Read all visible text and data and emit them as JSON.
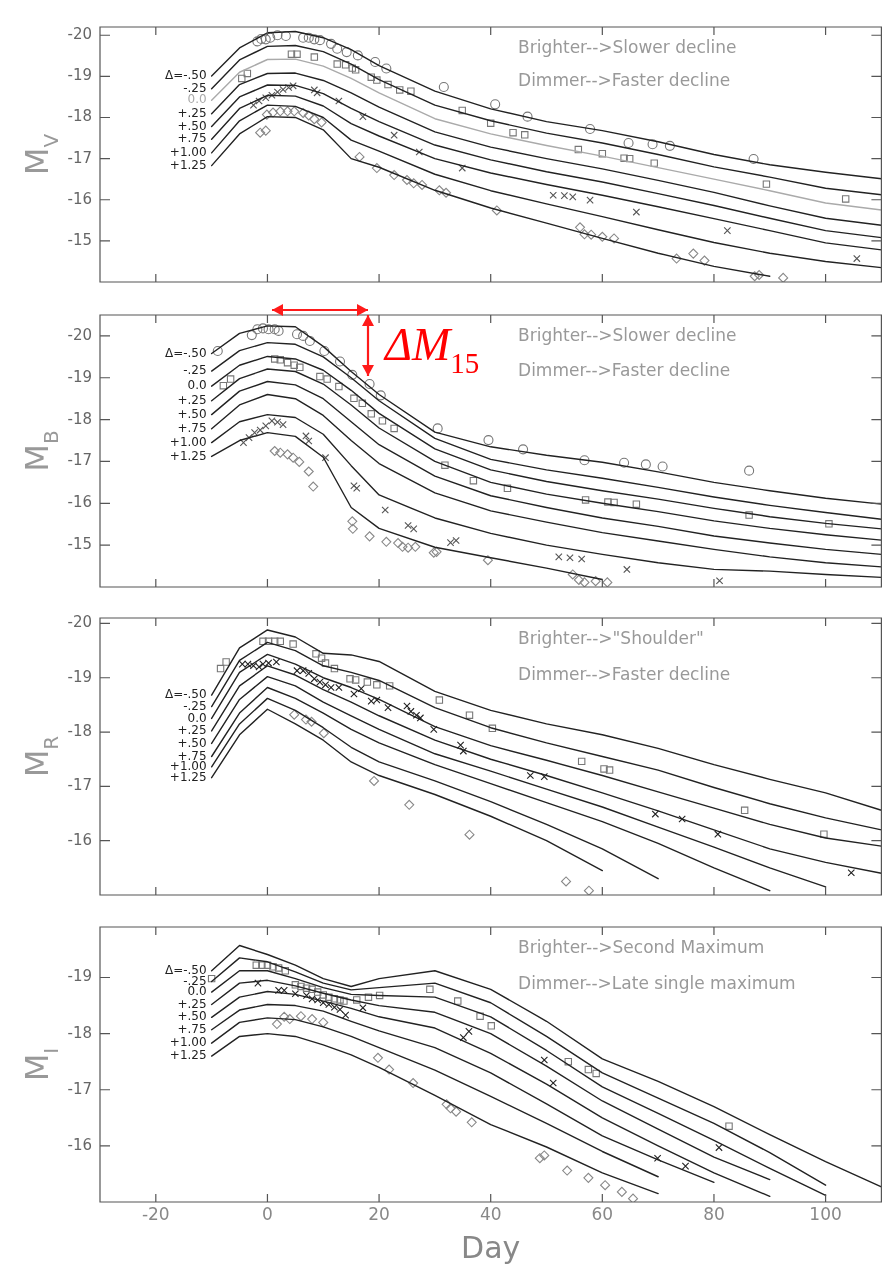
{
  "chart_data": [
    {
      "type": "line",
      "ylabel": "M$_{V}$",
      "xlim": [
        -30,
        110
      ],
      "xticks": [
        -20,
        0,
        20,
        40,
        60,
        80,
        100
      ],
      "ylim": [
        -14,
        -20.2
      ],
      "yticks": [
        -20,
        -19,
        -18,
        -17,
        -16,
        -15
      ],
      "tick_labels": "y",
      "grid": false,
      "legend": false,
      "marker": "none",
      "annotations": [
        "Brighter-->Slower decline",
        "Dimmer-->Faster decline"
      ],
      "x": [
        -10,
        -5,
        0,
        5,
        10,
        15,
        20,
        30,
        40,
        50,
        60,
        70,
        80,
        90,
        100,
        110
      ],
      "series": [
        {
          "name": "Δ=-.50",
          "color": "#222222",
          "values": [
            -19.01,
            -19.69,
            -20.06,
            -20.09,
            -19.94,
            -19.65,
            -19.26,
            -18.64,
            -18.21,
            -17.9,
            -17.68,
            -17.41,
            -17.1,
            -16.85,
            -16.67,
            -16.51
          ]
        },
        {
          "name": "-.25",
          "color": "#222222",
          "values": [
            -18.7,
            -19.4,
            -19.73,
            -19.75,
            -19.6,
            -19.3,
            -18.92,
            -18.3,
            -17.92,
            -17.62,
            -17.38,
            -17.1,
            -16.8,
            -16.55,
            -16.28,
            -16.12
          ]
        },
        {
          "name": "0.0",
          "color": "#aaaaaa",
          "values": [
            -18.42,
            -19.1,
            -19.41,
            -19.42,
            -19.25,
            -18.95,
            -18.6,
            -17.97,
            -17.6,
            -17.32,
            -17.06,
            -16.78,
            -16.5,
            -16.22,
            -15.92,
            -15.75
          ]
        },
        {
          "name": "+.25",
          "color": "#222222",
          "values": [
            -18.09,
            -18.8,
            -19.07,
            -19.08,
            -18.9,
            -18.6,
            -18.25,
            -17.65,
            -17.28,
            -17.0,
            -16.75,
            -16.47,
            -16.18,
            -15.85,
            -15.55,
            -15.38
          ]
        },
        {
          "name": "+.50",
          "color": "#222222",
          "values": [
            -17.78,
            -18.5,
            -18.79,
            -18.78,
            -18.58,
            -18.22,
            -17.9,
            -17.33,
            -16.97,
            -16.68,
            -16.43,
            -16.15,
            -15.86,
            -15.55,
            -15.25,
            -15.08
          ]
        },
        {
          "name": "+.75",
          "color": "#222222",
          "values": [
            -17.47,
            -18.22,
            -18.54,
            -18.52,
            -18.28,
            -17.85,
            -17.55,
            -17.0,
            -16.65,
            -16.37,
            -16.11,
            -15.83,
            -15.54,
            -15.25,
            -14.95,
            -14.78
          ]
        },
        {
          "name": "+1.00",
          "color": "#222222",
          "values": [
            -17.14,
            -17.92,
            -18.3,
            -18.27,
            -18.0,
            -17.45,
            -17.18,
            -16.62,
            -16.22,
            -15.9,
            -15.59,
            -15.27,
            -14.96,
            -14.7,
            -14.5,
            -14.35
          ]
        },
        {
          "name": "+1.25",
          "color": "#222222",
          "values": [
            -16.83,
            -17.6,
            -18.02,
            -18.0,
            -17.7,
            -17.0,
            -16.79,
            -16.23,
            -15.8,
            -15.43,
            -15.06,
            -14.7,
            -14.38,
            -14.14,
            null,
            null
          ]
        },
        {
          "type": "scatter",
          "marker": "circle",
          "color": "#777777",
          "x": [
            -1.8,
            -1.1,
            -0.3,
            0.5,
            1.8,
            3.3,
            6.4,
            7.4,
            8.4,
            9.4,
            11.4,
            12.5,
            14.2,
            16.2,
            19.3,
            21.3,
            31.6,
            40.8,
            46.6,
            57.8,
            64.7,
            69.0,
            72.1,
            87.1
          ],
          "values": [
            -19.85,
            -19.91,
            -19.9,
            -19.94,
            -20.0,
            -19.98,
            -19.94,
            -19.94,
            -19.9,
            -19.88,
            -19.79,
            -19.67,
            -19.59,
            -19.51,
            -19.35,
            -19.19,
            -18.74,
            -18.32,
            -18.02,
            -17.72,
            -17.38,
            -17.35,
            -17.31,
            -16.99
          ]
        },
        {
          "type": "scatter",
          "marker": "square",
          "color": "#777777",
          "x": [
            -4.6,
            -3.6,
            4.3,
            5.3,
            8.4,
            12.5,
            14.0,
            15.2,
            15.8,
            18.6,
            19.6,
            21.6,
            23.7,
            25.7,
            34.9,
            40.0,
            44.0,
            46.1,
            55.7,
            60.0,
            63.9,
            64.9,
            69.3,
            89.4,
            103.6
          ],
          "values": [
            -18.95,
            -19.07,
            -19.54,
            -19.54,
            -19.47,
            -19.3,
            -19.28,
            -19.2,
            -19.16,
            -18.98,
            -18.91,
            -18.8,
            -18.67,
            -18.64,
            -18.17,
            -17.86,
            -17.63,
            -17.58,
            -17.22,
            -17.12,
            -17.01,
            -17.0,
            -16.89,
            -16.38,
            -16.02
          ]
        },
        {
          "type": "scatter",
          "marker": "cross",
          "color": "#555555",
          "x": [
            -2.5,
            -1.5,
            -0.3,
            0.8,
            1.8,
            2.8,
            3.8,
            4.6,
            8.4,
            8.9,
            12.8,
            17.1,
            22.7,
            27.2,
            34.9,
            51.2,
            53.2,
            54.7,
            57.8,
            66.1,
            82.4,
            105.6
          ],
          "values": [
            -18.3,
            -18.4,
            -18.48,
            -18.54,
            -18.62,
            -18.68,
            -18.73,
            -18.77,
            -18.67,
            -18.6,
            -18.4,
            -18.02,
            -17.57,
            -17.16,
            -16.77,
            -16.11,
            -16.1,
            -16.07,
            -15.99,
            -15.7,
            -15.25,
            -14.57
          ]
        },
        {
          "type": "scatter",
          "marker": "diamond",
          "color": "#888888",
          "x": [
            -1.3,
            -0.3,
            -0.1,
            1.0,
            2.3,
            3.6,
            4.8,
            6.4,
            7.4,
            8.4,
            9.7,
            16.5,
            19.6,
            22.7,
            25.0,
            26.2,
            27.7,
            30.8,
            32.0,
            41.1,
            56.0,
            56.8,
            58.0,
            60.0,
            62.1,
            73.3,
            76.3,
            78.3,
            87.3,
            88.1,
            92.4
          ],
          "values": [
            -17.63,
            -17.68,
            -18.07,
            -18.12,
            -18.15,
            -18.15,
            -18.15,
            -18.11,
            -18.05,
            -17.96,
            -17.88,
            -17.04,
            -16.77,
            -16.6,
            -16.48,
            -16.4,
            -16.36,
            -16.23,
            -16.17,
            -15.74,
            -15.33,
            -15.16,
            -15.15,
            -15.1,
            -15.06,
            -14.57,
            -14.69,
            -14.52,
            -14.14,
            -14.17,
            -14.1
          ]
        }
      ]
    },
    {
      "type": "line",
      "ylabel": "M$_{B}$",
      "xlim": [
        -30,
        110
      ],
      "xticks": [
        -20,
        0,
        20,
        40,
        60,
        80,
        100
      ],
      "ylim": [
        -14,
        -20.5
      ],
      "yticks": [
        -20,
        -19,
        -18,
        -17,
        -16,
        -15
      ],
      "tick_labels": "y",
      "grid": false,
      "legend": false,
      "marker": "none",
      "annotations": [
        "Brighter-->Slower decline",
        "Dimmer-->Faster decline",
        {
          "text": "ΔM$_{15}$",
          "x": 18,
          "y": -19.05
        }
      ],
      "x": [
        -10,
        -5,
        0,
        5,
        10,
        15,
        20,
        30,
        40,
        50,
        60,
        70,
        80,
        90,
        100,
        110
      ],
      "series": [
        {
          "name": "Δ=-.50",
          "color": "#222222",
          "values": [
            -19.58,
            -20.06,
            -20.24,
            -20.22,
            -19.75,
            -19.15,
            -18.6,
            -17.7,
            -17.35,
            -17.15,
            -16.98,
            -16.75,
            -16.5,
            -16.3,
            -16.12,
            -15.98
          ]
        },
        {
          "name": "-.25",
          "color": "#222222",
          "values": [
            -19.16,
            -19.65,
            -19.84,
            -19.8,
            -19.5,
            -19.0,
            -18.45,
            -17.55,
            -17.05,
            -16.8,
            -16.6,
            -16.38,
            -16.15,
            -15.95,
            -15.78,
            -15.62
          ]
        },
        {
          "name": "0.0",
          "color": "#222222",
          "values": [
            -18.8,
            -19.3,
            -19.51,
            -19.45,
            -19.18,
            -18.7,
            -18.15,
            -17.3,
            -16.8,
            -16.52,
            -16.3,
            -16.1,
            -15.88,
            -15.68,
            -15.52,
            -15.39
          ]
        },
        {
          "name": "+.25",
          "color": "#222222",
          "values": [
            -18.45,
            -18.98,
            -19.21,
            -19.15,
            -18.85,
            -18.35,
            -17.8,
            -17.0,
            -16.5,
            -16.22,
            -16.0,
            -15.8,
            -15.58,
            -15.4,
            -15.25,
            -15.12
          ]
        },
        {
          "name": "+.50",
          "color": "#222222",
          "values": [
            -18.12,
            -18.68,
            -18.91,
            -18.83,
            -18.5,
            -17.95,
            -17.4,
            -16.65,
            -16.18,
            -15.9,
            -15.65,
            -15.45,
            -15.22,
            -15.05,
            -14.9,
            -14.78
          ]
        },
        {
          "name": "+.75",
          "color": "#222222",
          "values": [
            -17.78,
            -18.35,
            -18.6,
            -18.5,
            -18.1,
            -17.5,
            -16.95,
            -16.25,
            -15.82,
            -15.55,
            -15.3,
            -15.1,
            -14.9,
            -14.72,
            -14.58,
            -14.48
          ]
        },
        {
          "name": "+1.00",
          "color": "#222222",
          "values": [
            -17.45,
            -17.95,
            -18.12,
            -18.05,
            -17.65,
            -16.9,
            -16.2,
            -15.65,
            -15.28,
            -15.0,
            -14.78,
            -14.58,
            -14.42,
            -14.38,
            -14.3,
            -14.23
          ]
        },
        {
          "name": "+1.25",
          "color": "#222222",
          "values": [
            -17.12,
            -17.5,
            -17.69,
            -17.6,
            -17.1,
            -15.9,
            -15.4,
            -14.95,
            -14.7,
            -14.45,
            -14.18,
            null,
            null,
            null,
            null,
            null
          ]
        },
        {
          "type": "scatter",
          "marker": "circle",
          "color": "#777777",
          "x": [
            -8.9,
            -2.8,
            -1.8,
            -0.8,
            0.2,
            1.3,
            2.0,
            5.3,
            6.4,
            7.6,
            10.2,
            13.0,
            15.2,
            18.3,
            20.3,
            30.5,
            39.6,
            45.8,
            56.8,
            63.9,
            67.8,
            70.8,
            86.3
          ],
          "values": [
            -19.64,
            -20.02,
            -20.16,
            -20.18,
            -20.16,
            -20.16,
            -20.12,
            -20.04,
            -20.0,
            -19.88,
            -19.64,
            -19.39,
            -19.07,
            -18.85,
            -18.58,
            -17.79,
            -17.51,
            -17.29,
            -17.03,
            -16.97,
            -16.93,
            -16.88,
            -16.78
          ]
        },
        {
          "type": "scatter",
          "marker": "square",
          "color": "#777777",
          "x": [
            -7.9,
            -6.6,
            1.3,
            2.3,
            3.6,
            4.8,
            5.8,
            9.4,
            10.7,
            12.8,
            15.5,
            17.0,
            18.6,
            20.6,
            22.7,
            31.8,
            36.9,
            43.0,
            57.0,
            61.0,
            62.1,
            66.1,
            86.3,
            100.6
          ],
          "values": [
            -18.81,
            -18.97,
            -19.45,
            -19.43,
            -19.36,
            -19.3,
            -19.25,
            -19.03,
            -18.97,
            -18.79,
            -18.51,
            -18.39,
            -18.14,
            -17.97,
            -17.79,
            -16.91,
            -16.54,
            -16.36,
            -16.08,
            -16.03,
            -16.02,
            -15.98,
            -15.72,
            -15.51
          ]
        },
        {
          "type": "scatter",
          "marker": "cross",
          "color": "#555555",
          "x": [
            -4.3,
            -3.3,
            -2.3,
            -1.3,
            -0.3,
            0.8,
            1.8,
            2.8,
            6.9,
            7.4,
            10.4,
            15.5,
            16.0,
            21.1,
            25.2,
            26.2,
            32.8,
            33.8,
            52.2,
            54.2,
            56.3,
            64.4,
            81.0
          ],
          "values": [
            -17.45,
            -17.57,
            -17.69,
            -17.75,
            -17.85,
            -17.97,
            -17.94,
            -17.88,
            -17.61,
            -17.49,
            -17.09,
            -16.42,
            -16.36,
            -15.84,
            -15.47,
            -15.39,
            -15.06,
            -15.11,
            -14.72,
            -14.7,
            -14.67,
            -14.42,
            -14.15
          ]
        },
        {
          "type": "scatter",
          "marker": "diamond",
          "color": "#888888",
          "x": [
            1.3,
            2.3,
            3.6,
            4.6,
            5.7,
            7.4,
            8.2,
            15.2,
            15.3,
            18.3,
            21.3,
            23.4,
            24.2,
            25.2,
            26.5,
            29.8,
            30.3,
            39.5,
            54.7,
            55.8,
            56.8,
            58.8,
            60.9
          ],
          "values": [
            -17.25,
            -17.21,
            -17.17,
            -17.09,
            -16.99,
            -16.76,
            -16.4,
            -15.57,
            -15.39,
            -15.21,
            -15.08,
            -15.05,
            -14.96,
            -14.94,
            -14.96,
            -14.82,
            -14.84,
            -14.64,
            -14.3,
            -14.17,
            -14.11,
            -14.14,
            -14.11
          ]
        }
      ]
    },
    {
      "type": "line",
      "ylabel": "M$_{R}$",
      "xlim": [
        -30,
        110
      ],
      "xticks": [
        -20,
        0,
        20,
        40,
        60,
        80,
        100
      ],
      "ylim": [
        -15,
        -20.1
      ],
      "yticks": [
        -20,
        -19,
        -18,
        -17,
        -16
      ],
      "tick_labels": "y",
      "grid": false,
      "legend": false,
      "marker": "none",
      "annotations": [
        "Brighter-->\"Shoulder\"",
        "Dimmer-->Faster decline"
      ],
      "x": [
        -10,
        -5,
        0,
        5,
        10,
        15,
        20,
        30,
        40,
        50,
        60,
        70,
        80,
        90,
        100,
        110
      ],
      "series": [
        {
          "name": "Δ=-.50",
          "color": "#222222",
          "values": [
            -18.68,
            -19.55,
            -19.88,
            -19.75,
            -19.45,
            -19.42,
            -19.3,
            -18.75,
            -18.4,
            -18.15,
            -17.95,
            -17.7,
            -17.4,
            -17.13,
            -16.88,
            -16.56
          ]
        },
        {
          "name": "-.25",
          "color": "#222222",
          "values": [
            -18.47,
            -19.32,
            -19.65,
            -19.5,
            -19.22,
            -19.1,
            -18.95,
            -18.45,
            -18.08,
            -17.8,
            -17.55,
            -17.3,
            -16.98,
            -16.68,
            -16.42,
            -16.2
          ]
        },
        {
          "name": "0.0",
          "color": "#222222",
          "values": [
            -18.25,
            -19.1,
            -19.43,
            -19.25,
            -19.0,
            -18.82,
            -18.6,
            -18.1,
            -17.75,
            -17.48,
            -17.2,
            -16.9,
            -16.6,
            -16.3,
            -16.05,
            -15.9
          ]
        },
        {
          "name": "+.25",
          "color": "#222222",
          "values": [
            -18.02,
            -18.85,
            -19.22,
            -19.05,
            -18.78,
            -18.55,
            -18.3,
            -17.85,
            -17.5,
            -17.2,
            -16.88,
            -16.55,
            -16.2,
            -15.85,
            -15.6,
            -15.4
          ]
        },
        {
          "name": "+.50",
          "color": "#222222",
          "values": [
            -17.79,
            -18.6,
            -19.02,
            -18.85,
            -18.55,
            -18.3,
            -18.05,
            -17.6,
            -17.28,
            -16.95,
            -16.62,
            -16.25,
            -15.88,
            -15.5,
            -15.15,
            null
          ]
        },
        {
          "name": "+.75",
          "color": "#222222",
          "values": [
            -17.55,
            -18.35,
            -18.82,
            -18.62,
            -18.35,
            -18.05,
            -17.8,
            -17.4,
            -17.05,
            -16.7,
            -16.35,
            -15.95,
            -15.5,
            -15.08,
            null,
            null
          ]
        },
        {
          "name": "+1.00",
          "color": "#222222",
          "values": [
            -17.36,
            -18.15,
            -18.62,
            -18.4,
            -18.08,
            -17.72,
            -17.45,
            -17.1,
            -16.72,
            -16.3,
            -15.85,
            -15.3,
            null,
            null,
            null,
            null
          ]
        },
        {
          "name": "+1.25",
          "color": "#222222",
          "values": [
            -17.16,
            -17.95,
            -18.42,
            -18.15,
            -17.85,
            -17.45,
            -17.2,
            -16.85,
            -16.45,
            -16.0,
            -15.45,
            null,
            null,
            null,
            null,
            null
          ]
        },
        {
          "type": "scatter",
          "marker": "square",
          "color": "#777777",
          "x": [
            -8.4,
            -7.4,
            -0.8,
            0.2,
            1.3,
            2.3,
            4.6,
            8.7,
            9.7,
            10.4,
            12.0,
            14.8,
            15.8,
            17.9,
            19.6,
            21.9,
            30.8,
            36.2,
            40.3,
            56.3,
            60.3,
            61.3,
            85.5,
            99.7
          ],
          "values": [
            -19.17,
            -19.29,
            -19.67,
            -19.67,
            -19.67,
            -19.67,
            -19.62,
            -19.44,
            -19.36,
            -19.27,
            -19.17,
            -18.98,
            -18.96,
            -18.92,
            -18.87,
            -18.85,
            -18.59,
            -18.31,
            -18.07,
            -17.46,
            -17.32,
            -17.3,
            -16.56,
            -16.12
          ]
        },
        {
          "type": "scatter",
          "marker": "cross",
          "color": "#222222",
          "x": [
            -4.5,
            -3.5,
            -2.5,
            -1.5,
            -0.8,
            0.2,
            1.6,
            5.3,
            6.4,
            7.4,
            8.4,
            9.4,
            10.4,
            11.4,
            12.8,
            15.5,
            16.8,
            18.6,
            19.6,
            21.6,
            25.0,
            25.7,
            26.7,
            27.4,
            29.8,
            34.6,
            35.1,
            47.1,
            49.6,
            69.5,
            74.3,
            80.7,
            104.6
          ],
          "values": [
            -19.25,
            -19.25,
            -19.22,
            -19.2,
            -19.25,
            -19.27,
            -19.29,
            -19.13,
            -19.13,
            -19.08,
            -18.98,
            -18.92,
            -18.87,
            -18.82,
            -18.82,
            -18.7,
            -18.8,
            -18.57,
            -18.59,
            -18.45,
            -18.48,
            -18.38,
            -18.31,
            -18.26,
            -18.05,
            -17.76,
            -17.65,
            -17.2,
            -17.18,
            -16.49,
            -16.4,
            -16.12,
            -15.41
          ]
        },
        {
          "type": "scatter",
          "marker": "diamond",
          "color": "#888888",
          "x": [
            4.8,
            6.9,
            7.9,
            10.1,
            19.1,
            25.4,
            36.2,
            53.5,
            57.6
          ],
          "values": [
            -18.32,
            -18.23,
            -18.19,
            -17.98,
            -17.1,
            -16.66,
            -16.11,
            -15.25,
            -15.08
          ]
        }
      ]
    },
    {
      "type": "line",
      "xlabel": "Day",
      "ylabel": "M$_{I}$",
      "xlim": [
        -30,
        110
      ],
      "xticks": [
        -20,
        0,
        20,
        40,
        60,
        80,
        100
      ],
      "ylim": [
        -15,
        -19.9
      ],
      "yticks": [
        -19,
        -18,
        -17,
        -16
      ],
      "grid": false,
      "legend": false,
      "marker": "none",
      "annotations": [
        "Brighter-->Second Maximum",
        "Dimmer-->Late single maximum"
      ],
      "x": [
        -10,
        -5,
        0,
        5,
        10,
        15,
        20,
        30,
        40,
        50,
        60,
        70,
        80,
        90,
        100,
        110
      ],
      "series": [
        {
          "name": "Δ=-.50",
          "color": "#222222",
          "values": [
            -19.12,
            -19.57,
            -19.41,
            -19.22,
            -18.98,
            -18.84,
            -18.98,
            -19.12,
            -18.79,
            -18.22,
            -17.55,
            -17.15,
            -16.7,
            -16.2,
            -15.72,
            -15.27
          ]
        },
        {
          "name": "-.25",
          "color": "#222222",
          "values": [
            -18.93,
            -19.35,
            -19.28,
            -19.1,
            -18.9,
            -18.78,
            -18.82,
            -18.9,
            -18.55,
            -17.95,
            -17.3,
            -16.85,
            -16.4,
            -15.88,
            -15.3,
            null
          ]
        },
        {
          "name": "0.0",
          "color": "#222222",
          "values": [
            -18.74,
            -19.12,
            -19.12,
            -18.98,
            -18.82,
            -18.7,
            -18.68,
            -18.65,
            -18.3,
            -17.7,
            -17.05,
            -16.58,
            -16.1,
            -15.6,
            -15.12,
            null
          ]
        },
        {
          "name": "+.25",
          "color": "#222222",
          "values": [
            -18.52,
            -18.9,
            -18.95,
            -18.85,
            -18.72,
            -18.6,
            -18.5,
            -18.38,
            -18.0,
            -17.42,
            -16.8,
            -16.3,
            -15.8,
            -15.4,
            null,
            null
          ]
        },
        {
          "name": "+.50",
          "color": "#222222",
          "values": [
            -18.29,
            -18.65,
            -18.75,
            -18.7,
            -18.58,
            -18.45,
            -18.3,
            -18.1,
            -17.65,
            -17.1,
            -16.5,
            -16.0,
            -15.52,
            -15.1,
            null,
            null
          ]
        },
        {
          "name": "+.75",
          "color": "#222222",
          "values": [
            -18.07,
            -18.42,
            -18.52,
            -18.5,
            -18.4,
            -18.22,
            -18.05,
            -17.75,
            -17.3,
            -16.75,
            -16.18,
            -15.75,
            -15.35,
            null,
            null,
            null
          ]
        },
        {
          "name": "+1.00",
          "color": "#222222",
          "values": [
            -17.83,
            -18.2,
            -18.28,
            -18.25,
            -18.12,
            -17.95,
            -17.75,
            -17.35,
            -16.88,
            -16.4,
            -15.9,
            -15.45,
            null,
            null,
            null,
            null
          ]
        },
        {
          "name": "+1.25",
          "color": "#222222",
          "values": [
            -17.6,
            -17.95,
            -18.0,
            -17.95,
            -17.8,
            -17.62,
            -17.4,
            -16.9,
            -16.38,
            -15.98,
            -15.52,
            -15.15,
            null,
            null,
            null,
            null
          ]
        },
        {
          "type": "scatter",
          "marker": "square",
          "color": "#777777",
          "x": [
            -10.0,
            -2.0,
            -1.0,
            0.0,
            1.0,
            2.0,
            3.2,
            5.0,
            6.0,
            7.0,
            8.0,
            9.0,
            10.0,
            11.0,
            12.0,
            13.0,
            13.7,
            16.0,
            18.1,
            20.1,
            29.1,
            34.1,
            38.1,
            40.1,
            53.9,
            57.5,
            58.9,
            82.7
          ],
          "values": [
            -18.98,
            -19.22,
            -19.22,
            -19.22,
            -19.19,
            -19.17,
            -19.12,
            -18.87,
            -18.84,
            -18.81,
            -18.79,
            -18.74,
            -18.69,
            -18.65,
            -18.62,
            -18.6,
            -18.58,
            -18.6,
            -18.65,
            -18.68,
            -18.79,
            -18.58,
            -18.31,
            -18.14,
            -17.5,
            -17.36,
            -17.29,
            -16.35
          ]
        },
        {
          "type": "scatter",
          "marker": "cross",
          "color": "#222222",
          "x": [
            -1.7,
            2.0,
            3.0,
            5.0,
            7.0,
            8.0,
            9.0,
            10.0,
            11.0,
            12.0,
            13.0,
            14.0,
            17.1,
            35.1,
            36.1,
            49.6,
            51.2,
            69.9,
            74.9,
            80.9
          ],
          "values": [
            -18.9,
            -18.77,
            -18.77,
            -18.71,
            -18.68,
            -18.62,
            -18.6,
            -18.55,
            -18.52,
            -18.47,
            -18.43,
            -18.33,
            -18.46,
            -17.93,
            -18.04,
            -17.53,
            -17.12,
            -15.78,
            -15.64,
            -15.97
          ]
        },
        {
          "type": "scatter",
          "marker": "diamond",
          "color": "#888888",
          "x": [
            1.7,
            3.0,
            4.0,
            6.0,
            8.0,
            10.0,
            19.8,
            21.8,
            26.1,
            32.1,
            32.8,
            33.8,
            36.6,
            48.8,
            49.6,
            53.7,
            57.5,
            60.5,
            63.5,
            65.5
          ],
          "values": [
            -18.17,
            -18.3,
            -18.26,
            -18.31,
            -18.26,
            -18.2,
            -17.57,
            -17.36,
            -17.12,
            -16.74,
            -16.67,
            -16.61,
            -16.42,
            -15.78,
            -15.83,
            -15.56,
            -15.43,
            -15.3,
            -15.18,
            -15.06
          ]
        }
      ]
    }
  ]
}
